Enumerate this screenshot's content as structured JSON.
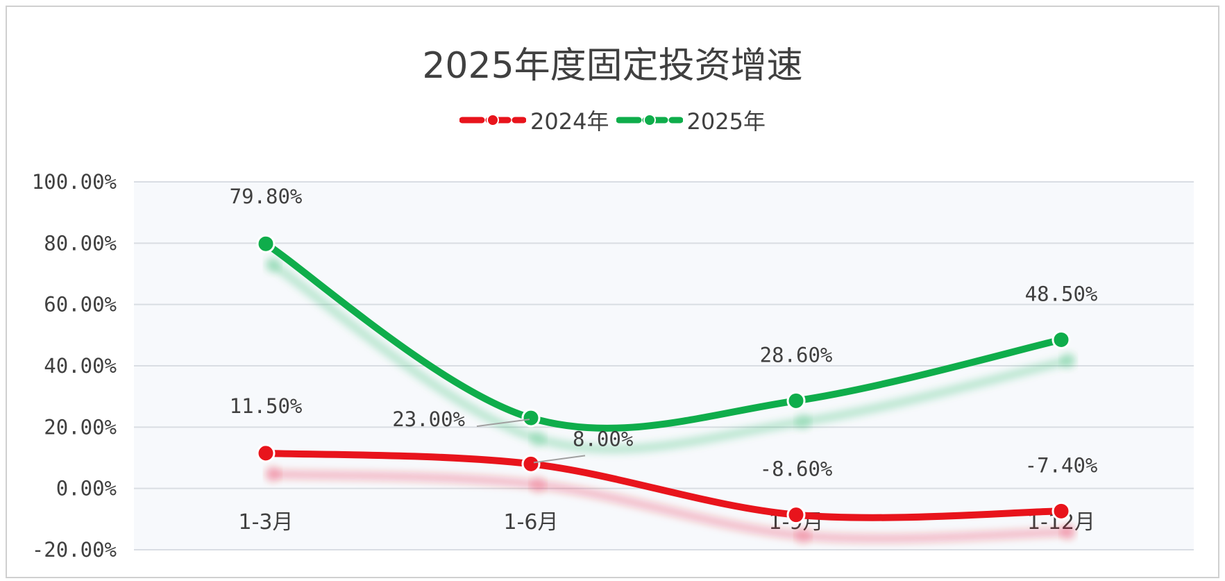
{
  "chart_data": {
    "type": "line",
    "title": "2025年度固定投资增速",
    "categories": [
      "1-3月",
      "1-6月",
      "1-9月",
      "1-12月"
    ],
    "series": [
      {
        "name": "2024年",
        "color": "#e8141c",
        "values": [
          11.5,
          8.0,
          -8.6,
          -7.4
        ],
        "labels": [
          "11.50%",
          "8.00%",
          "-8.60%",
          "-7.40%"
        ]
      },
      {
        "name": "2025年",
        "color": "#0fad4b",
        "values": [
          79.8,
          23.0,
          28.6,
          48.5
        ],
        "labels": [
          "79.80%",
          "23.00%",
          "28.60%",
          "48.50%"
        ]
      }
    ],
    "ylim": [
      -20,
      100
    ],
    "yticks": [
      100,
      80,
      60,
      40,
      20,
      0,
      -20
    ],
    "ytick_labels": [
      "100.00%",
      "80.00%",
      "60.00%",
      "40.00%",
      "20.00%",
      "0.00%",
      "-20.00%"
    ],
    "grid": true,
    "legend_position": "top",
    "smooth": true,
    "plot_background": "#f7f9fc"
  }
}
